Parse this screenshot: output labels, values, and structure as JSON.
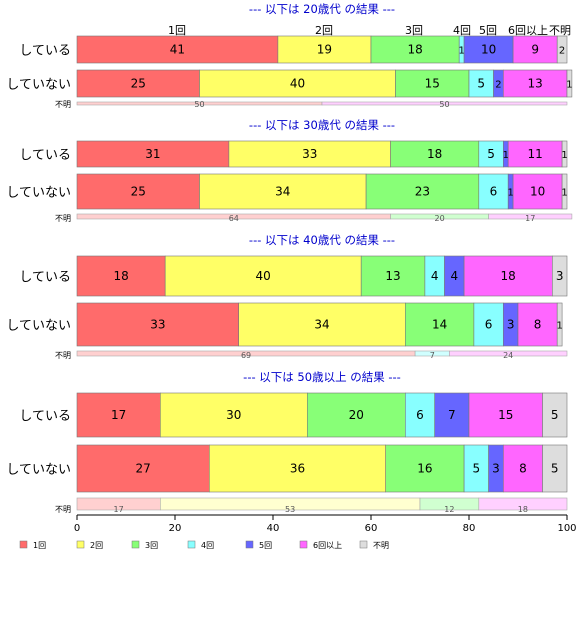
{
  "chart_data": {
    "type": "bar",
    "orientation": "horizontal",
    "stacked": true,
    "xlim": [
      0,
      100
    ],
    "x_ticks": [
      "0",
      "20",
      "40",
      "60",
      "80",
      "100"
    ],
    "top_category_labels": [
      "1回",
      "2回",
      "3回",
      "4回",
      "5回",
      "6回以上",
      "不明"
    ],
    "legend": {
      "position": "bottom-left",
      "entries": [
        {
          "label": "1回",
          "color": "#ff6b6b"
        },
        {
          "label": "2回",
          "color": "#ffff66"
        },
        {
          "label": "3回",
          "color": "#88ff77"
        },
        {
          "label": "4回",
          "color": "#88ffff"
        },
        {
          "label": "5回",
          "color": "#6666ff"
        },
        {
          "label": "6回以上",
          "color": "#ff66ff"
        },
        {
          "label": "不明",
          "color": "#dddddd"
        }
      ]
    },
    "groups": [
      {
        "title": "--- 以下は 20歳代 の結果 ---",
        "rows": [
          {
            "label": "している",
            "values": [
              41,
              19,
              18,
              1,
              10,
              9,
              2
            ]
          },
          {
            "label": "していない",
            "values": [
              25,
              40,
              15,
              5,
              2,
              13,
              1
            ]
          }
        ],
        "fumei_label": "不明",
        "fumei_values": [
          50,
          0,
          0,
          0,
          0,
          50,
          0
        ]
      },
      {
        "title": "--- 以下は 30歳代 の結果 ---",
        "rows": [
          {
            "label": "している",
            "values": [
              31,
              33,
              18,
              5,
              1,
              11,
              1
            ]
          },
          {
            "label": "していない",
            "values": [
              25,
              34,
              23,
              6,
              1,
              10,
              1
            ]
          }
        ],
        "fumei_label": "不明",
        "fumei_values": [
          64,
          0,
          20,
          0,
          0,
          17,
          0
        ]
      },
      {
        "title": "--- 以下は 40歳代 の結果 ---",
        "rows": [
          {
            "label": "している",
            "values": [
              18,
              40,
              13,
              4,
              4,
              18,
              3
            ]
          },
          {
            "label": "していない",
            "values": [
              33,
              34,
              14,
              6,
              3,
              8,
              1
            ]
          }
        ],
        "fumei_label": "不明",
        "fumei_values": [
          69,
          0,
          0,
          7,
          0,
          24,
          0
        ]
      },
      {
        "title": "--- 以下は 50歳以上 の結果 ---",
        "rows": [
          {
            "label": "している",
            "values": [
              17,
              30,
              20,
              6,
              7,
              15,
              5
            ]
          },
          {
            "label": "していない",
            "values": [
              27,
              36,
              16,
              5,
              3,
              8,
              5
            ]
          }
        ],
        "fumei_label": "不明",
        "fumei_values": [
          17,
          53,
          12,
          0,
          0,
          18,
          0
        ]
      }
    ]
  },
  "colors": {
    "strong": [
      "#ff6b6b",
      "#ffff66",
      "#88ff77",
      "#88ffff",
      "#6666ff",
      "#ff66ff",
      "#dddddd"
    ],
    "light": [
      "#ffd0d0",
      "#ffffd0",
      "#d0ffd0",
      "#d0ffff",
      "#d0d0ff",
      "#ffd0ff",
      "#eeeeee"
    ],
    "title": "#0000cc"
  }
}
